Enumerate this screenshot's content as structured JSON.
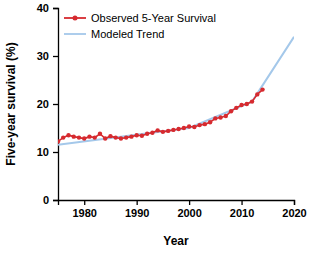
{
  "chart_data": {
    "type": "line",
    "x_label": "Year",
    "y_label": "Five-year survival (%)",
    "xlim": [
      1975,
      2020
    ],
    "xticks": [
      1980,
      1990,
      2000,
      2010,
      2020
    ],
    "ylim": [
      0,
      40
    ],
    "yticks": [
      0,
      10,
      20,
      30,
      40
    ],
    "grid": false,
    "legend": "top-left",
    "series": [
      {
        "name": "Observed 5-Year Survival",
        "color": "#d62a2f",
        "marker": "circle",
        "line_style": "solid",
        "x": [
          1975,
          1976,
          1977,
          1978,
          1979,
          1980,
          1981,
          1982,
          1983,
          1984,
          1985,
          1986,
          1987,
          1988,
          1989,
          1990,
          1991,
          1992,
          1993,
          1994,
          1995,
          1996,
          1997,
          1998,
          1999,
          2000,
          2001,
          2002,
          2003,
          2004,
          2005,
          2006,
          2007,
          2008,
          2009,
          2010,
          2011,
          2012,
          2013,
          2014
        ],
        "values": [
          12.2,
          13.0,
          13.5,
          13.2,
          13.0,
          12.8,
          13.2,
          13.0,
          13.8,
          12.8,
          13.3,
          13.0,
          12.8,
          13.0,
          13.2,
          13.5,
          13.4,
          13.8,
          14.0,
          14.5,
          14.2,
          14.4,
          14.6,
          14.8,
          15.0,
          15.3,
          15.2,
          15.6,
          15.8,
          16.2,
          17.0,
          17.2,
          17.5,
          18.5,
          19.2,
          19.8,
          20.0,
          20.5,
          22.0,
          23.0
        ]
      },
      {
        "name": "Modeled Trend",
        "color": "#a4c8ea",
        "marker": "none",
        "line_style": "solid",
        "x": [
          1975,
          2000,
          2012,
          2020
        ],
        "values": [
          11.5,
          15.0,
          20.5,
          34.0
        ]
      }
    ]
  }
}
